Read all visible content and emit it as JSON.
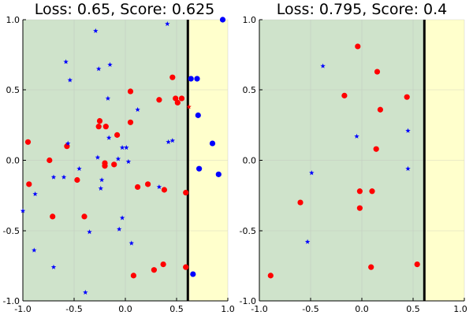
{
  "colors": {
    "green_region": "#cfe3cb",
    "yellow_region": "#ffffcc",
    "red_marker": "#ff0000",
    "blue_marker": "#0000ff",
    "boundary_line": "#000000",
    "grid": "#b8b8b8"
  },
  "marker_shapes": {
    "circle": "circle",
    "star": "star"
  },
  "chart_data": [
    {
      "type": "scatter",
      "title": "Loss: 0.65, Score: 0.625",
      "xlabel": "",
      "ylabel": "",
      "xlim": [
        -1.0,
        1.0
      ],
      "ylim": [
        -1.0,
        1.0
      ],
      "xticks": [
        "-1.0",
        "-0.5",
        "0.0",
        "0.5",
        "1.0"
      ],
      "yticks": [
        "1.0",
        "0.5",
        "0.0",
        "-0.5",
        "-1.0"
      ],
      "grid": true,
      "legend": "none",
      "decision_boundary_x": 0.61,
      "regions": [
        {
          "x_from": -1.0,
          "x_to": 0.61,
          "color": "green"
        },
        {
          "x_from": 0.61,
          "x_to": 1.0,
          "color": "yellow"
        }
      ],
      "series": [
        {
          "color": "red",
          "marker": "circle",
          "x": [
            -0.95,
            -0.94,
            -0.74,
            -0.71,
            -0.57,
            -0.47,
            -0.4,
            -0.26,
            -0.25,
            -0.2,
            -0.2,
            -0.19,
            -0.11,
            -0.08,
            0.05,
            0.05,
            0.08,
            0.12,
            0.22,
            0.28,
            0.33,
            0.37,
            0.38,
            0.46,
            0.49,
            0.51,
            0.55,
            0.59,
            0.59
          ],
          "y": [
            0.13,
            -0.17,
            0.0,
            -0.4,
            0.1,
            -0.14,
            -0.4,
            0.24,
            0.28,
            -0.02,
            -0.04,
            0.24,
            -0.03,
            0.18,
            0.49,
            0.27,
            -0.82,
            -0.19,
            -0.17,
            -0.78,
            0.43,
            -0.74,
            -0.21,
            0.59,
            0.44,
            0.41,
            0.44,
            -0.23,
            -0.76
          ]
        },
        {
          "color": "red",
          "marker": "star",
          "x": [
            0.62
          ],
          "y": [
            0.38
          ]
        },
        {
          "color": "blue",
          "marker": "circle",
          "x": [
            0.64,
            0.7,
            0.71,
            0.72,
            0.66,
            0.85,
            0.91,
            0.95
          ],
          "y": [
            0.58,
            0.58,
            0.32,
            -0.06,
            -0.81,
            0.12,
            -0.1,
            1.0
          ]
        },
        {
          "color": "blue",
          "marker": "star",
          "x": [
            -1.0,
            -0.89,
            -0.88,
            -0.7,
            -0.7,
            -0.6,
            -0.58,
            -0.56,
            -0.54,
            -0.45,
            -0.39,
            -0.35,
            -0.29,
            -0.27,
            -0.26,
            -0.24,
            -0.23,
            -0.17,
            -0.16,
            -0.15,
            -0.07,
            -0.06,
            -0.03,
            -0.03,
            0.01,
            0.03,
            0.06,
            0.12,
            0.33,
            0.41,
            0.42,
            0.46
          ],
          "y": [
            -0.36,
            -0.64,
            -0.24,
            -0.12,
            -0.76,
            -0.12,
            0.7,
            0.12,
            0.57,
            -0.06,
            -0.94,
            -0.51,
            0.92,
            0.02,
            0.65,
            -0.2,
            -0.14,
            0.44,
            0.16,
            0.68,
            0.01,
            -0.49,
            0.09,
            -0.41,
            0.09,
            -0.01,
            -0.59,
            0.36,
            -0.19,
            0.97,
            0.13,
            0.14
          ]
        }
      ]
    },
    {
      "type": "scatter",
      "title": "Loss: 0.795, Score: 0.4",
      "xlabel": "",
      "ylabel": "",
      "xlim": [
        -1.0,
        1.0
      ],
      "ylim": [
        -1.0,
        1.0
      ],
      "xticks": [
        "-1.0",
        "-0.5",
        "0.0",
        "0.5",
        "1.0"
      ],
      "yticks": [
        "1.0",
        "0.5",
        "0.0",
        "-0.5",
        "-1.0"
      ],
      "grid": true,
      "legend": "none",
      "decision_boundary_x": 0.61,
      "regions": [
        {
          "x_from": -1.0,
          "x_to": 0.61,
          "color": "green"
        },
        {
          "x_from": 0.61,
          "x_to": 1.0,
          "color": "yellow"
        }
      ],
      "series": [
        {
          "color": "red",
          "marker": "circle",
          "x": [
            -0.04,
            0.15,
            -0.17,
            0.18,
            0.44,
            0.14,
            -0.02,
            0.1,
            -0.02,
            -0.6,
            0.09,
            0.54,
            -0.89
          ],
          "y": [
            0.81,
            0.63,
            0.46,
            0.36,
            0.45,
            0.08,
            -0.22,
            -0.22,
            -0.34,
            -0.3,
            -0.76,
            -0.74,
            -0.82
          ]
        },
        {
          "color": "blue",
          "marker": "star",
          "x": [
            -0.38,
            -0.05,
            0.45,
            -0.49,
            0.45,
            -0.53
          ],
          "y": [
            0.67,
            0.17,
            0.21,
            -0.09,
            -0.06,
            -0.58
          ]
        }
      ]
    }
  ]
}
